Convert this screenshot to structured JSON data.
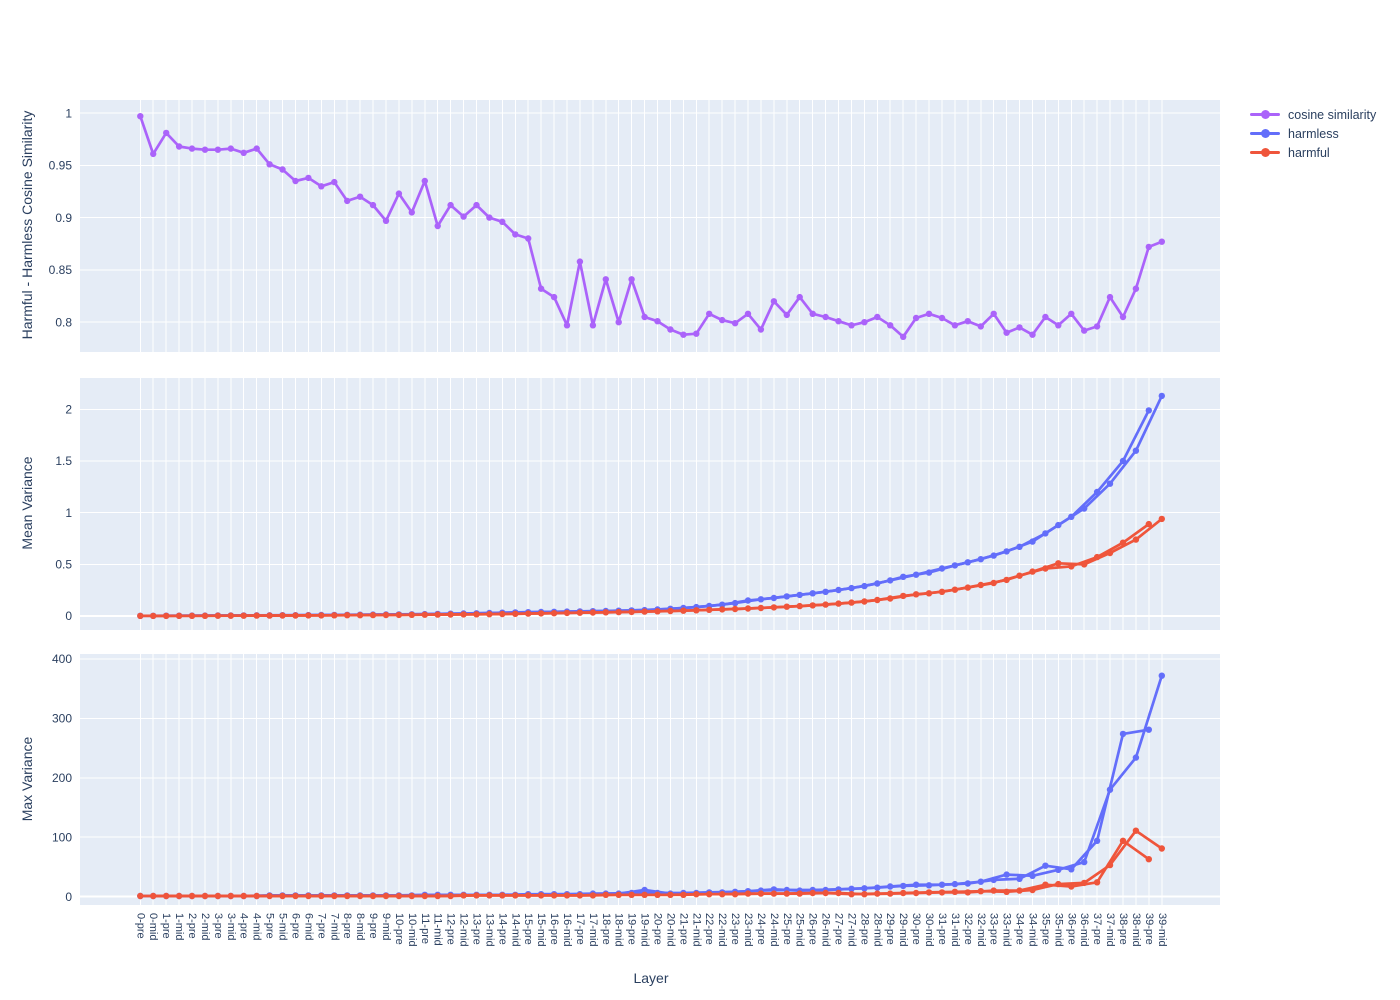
{
  "figure": {
    "background": "#ffffff",
    "plot_background": "#e5ecf6",
    "grid_color": "#ffffff",
    "text_color": "#2a3f5f"
  },
  "chart_data": {
    "type": "line",
    "xlabel": "Layer",
    "legend_position": "top-right",
    "grid": true,
    "categories": [
      "0-pre",
      "0-mid",
      "1-pre",
      "1-mid",
      "2-pre",
      "2-mid",
      "3-pre",
      "3-mid",
      "4-pre",
      "4-mid",
      "5-pre",
      "5-mid",
      "6-pre",
      "6-mid",
      "7-pre",
      "7-mid",
      "8-pre",
      "8-mid",
      "9-pre",
      "9-mid",
      "10-pre",
      "10-mid",
      "11-pre",
      "11-mid",
      "12-pre",
      "12-mid",
      "13-pre",
      "13-mid",
      "14-pre",
      "14-mid",
      "15-pre",
      "15-mid",
      "16-pre",
      "16-mid",
      "17-pre",
      "17-mid",
      "18-pre",
      "18-mid",
      "19-pre",
      "19-mid",
      "20-pre",
      "20-mid",
      "21-pre",
      "21-mid",
      "22-pre",
      "22-mid",
      "23-pre",
      "23-mid",
      "24-pre",
      "24-mid",
      "25-pre",
      "25-mid",
      "26-pre",
      "26-mid",
      "27-pre",
      "27-mid",
      "28-pre",
      "28-mid",
      "29-pre",
      "29-mid",
      "30-pre",
      "30-mid",
      "31-pre",
      "31-mid",
      "32-pre",
      "32-mid",
      "33-pre",
      "33-mid",
      "34-pre",
      "34-mid",
      "35-pre",
      "35-mid",
      "36-pre",
      "36-mid",
      "37-pre",
      "37-mid",
      "38-pre",
      "38-mid",
      "39-pre",
      "39-mid"
    ],
    "legend": [
      {
        "label": "cosine similarity",
        "color": "#ab63fa"
      },
      {
        "label": "harmless",
        "color": "#636efa"
      },
      {
        "label": "harmful",
        "color": "#ef553b"
      }
    ],
    "panels": [
      {
        "ylabel": "Harmful - Harmless Cosine Similarity",
        "ylim": [
          0.7715,
          1.0125
        ],
        "yticks": [
          0.8,
          0.85,
          0.9,
          0.95,
          1
        ],
        "yticklabels": [
          "0.8",
          "0.85",
          "0.9",
          "0.95",
          "1"
        ],
        "series": [
          {
            "name": "cosine similarity",
            "color": "#ab63fa",
            "braid": false,
            "values": [
              0.997,
              0.961,
              0.981,
              0.968,
              0.966,
              0.965,
              0.965,
              0.966,
              0.962,
              0.966,
              0.951,
              0.946,
              0.935,
              0.938,
              0.93,
              0.934,
              0.916,
              0.92,
              0.912,
              0.897,
              0.923,
              0.905,
              0.935,
              0.892,
              0.912,
              0.901,
              0.912,
              0.9,
              0.896,
              0.884,
              0.88,
              0.832,
              0.824,
              0.797,
              0.858,
              0.797,
              0.841,
              0.8,
              0.841,
              0.805,
              0.801,
              0.793,
              0.788,
              0.789,
              0.808,
              0.802,
              0.799,
              0.808,
              0.793,
              0.82,
              0.807,
              0.824,
              0.808,
              0.805,
              0.801,
              0.797,
              0.8,
              0.805,
              0.797,
              0.786,
              0.804,
              0.808,
              0.804,
              0.797,
              0.801,
              0.796,
              0.808,
              0.79,
              0.795,
              0.788,
              0.805,
              0.797,
              0.808,
              0.792,
              0.796,
              0.824,
              0.805,
              0.832,
              0.872,
              0.877
            ]
          }
        ]
      },
      {
        "ylabel": "Mean Variance",
        "ylim": [
          -0.135,
          2.303
        ],
        "yticks": [
          0,
          0.5,
          1,
          1.5,
          2
        ],
        "yticklabels": [
          "0",
          "0.5",
          "1",
          "1.5",
          "2"
        ],
        "series": [
          {
            "name": "harmless",
            "color": "#636efa",
            "braid": true,
            "values": [
              0.002,
              0.002,
              0.003,
              0.003,
              0.004,
              0.004,
              0.005,
              0.005,
              0.006,
              0.007,
              0.007,
              0.008,
              0.008,
              0.009,
              0.01,
              0.011,
              0.012,
              0.013,
              0.014,
              0.015,
              0.016,
              0.017,
              0.019,
              0.021,
              0.023,
              0.025,
              0.027,
              0.029,
              0.032,
              0.035,
              0.037,
              0.039,
              0.041,
              0.043,
              0.045,
              0.047,
              0.049,
              0.052,
              0.055,
              0.058,
              0.063,
              0.07,
              0.078,
              0.087,
              0.097,
              0.11,
              0.125,
              0.15,
              0.162,
              0.175,
              0.19,
              0.205,
              0.22,
              0.235,
              0.252,
              0.27,
              0.29,
              0.315,
              0.345,
              0.38,
              0.4,
              0.42,
              0.46,
              0.49,
              0.52,
              0.55,
              0.585,
              0.625,
              0.67,
              0.72,
              0.8,
              0.88,
              0.96,
              1.04,
              1.2,
              1.28,
              1.5,
              1.6,
              1.99,
              2.13
            ]
          },
          {
            "name": "harmful",
            "color": "#ef553b",
            "braid": true,
            "values": [
              0.001,
              0.001,
              0.001,
              0.002,
              0.002,
              0.002,
              0.003,
              0.003,
              0.003,
              0.004,
              0.004,
              0.005,
              0.005,
              0.006,
              0.006,
              0.007,
              0.008,
              0.008,
              0.009,
              0.01,
              0.011,
              0.012,
              0.013,
              0.014,
              0.015,
              0.016,
              0.017,
              0.018,
              0.02,
              0.022,
              0.024,
              0.026,
              0.028,
              0.03,
              0.032,
              0.034,
              0.036,
              0.038,
              0.04,
              0.043,
              0.046,
              0.049,
              0.052,
              0.056,
              0.06,
              0.064,
              0.068,
              0.073,
              0.078,
              0.084,
              0.09,
              0.096,
              0.103,
              0.111,
              0.12,
              0.13,
              0.141,
              0.155,
              0.17,
              0.195,
              0.21,
              0.22,
              0.235,
              0.255,
              0.275,
              0.3,
              0.32,
              0.35,
              0.39,
              0.43,
              0.46,
              0.51,
              0.48,
              0.5,
              0.57,
              0.61,
              0.71,
              0.74,
              0.89,
              0.94
            ]
          }
        ]
      },
      {
        "ylabel": "Max Variance",
        "ylim": [
          -14.2,
          408.5
        ],
        "yticks": [
          0,
          100,
          200,
          300,
          400
        ],
        "yticklabels": [
          "0",
          "100",
          "200",
          "300",
          "400"
        ],
        "series": [
          {
            "name": "harmless",
            "color": "#636efa",
            "braid": true,
            "values": [
              1,
              1,
              1,
              1,
              1,
              1,
              1,
              1,
              1,
              1,
              2,
              2,
              2,
              2,
              2,
              2,
              2,
              2,
              2,
              2,
              2,
              2,
              3,
              3,
              3,
              3,
              3,
              3,
              3,
              3,
              4,
              4,
              4,
              4,
              4,
              5,
              5,
              5,
              6,
              11,
              6,
              5,
              6,
              6,
              7,
              7,
              8,
              9,
              10,
              12,
              11,
              10,
              11,
              11,
              12,
              13,
              14,
              15,
              17,
              18,
              20,
              19,
              20,
              21,
              22,
              25,
              28,
              37,
              30,
              35,
              52,
              45,
              46,
              58,
              94,
              180,
              274,
              234,
              281,
              372
            ]
          },
          {
            "name": "harmful",
            "color": "#ef553b",
            "braid": true,
            "values": [
              1,
              1,
              1,
              1,
              1,
              1,
              1,
              1,
              1,
              1,
              1,
              1,
              1,
              1,
              1,
              1,
              1,
              1,
              1,
              1,
              1,
              1,
              1,
              1,
              1,
              2,
              2,
              2,
              2,
              2,
              2,
              2,
              2,
              2,
              2,
              2,
              3,
              3,
              3,
              3,
              3,
              3,
              3,
              4,
              4,
              4,
              4,
              5,
              5,
              5,
              5,
              5,
              6,
              6,
              6,
              4,
              4,
              5,
              5,
              6,
              6,
              7,
              7,
              8,
              7,
              9,
              10,
              8,
              10,
              11,
              20,
              21,
              17,
              23,
              24,
              53,
              94,
              111,
              63,
              81
            ]
          }
        ]
      }
    ]
  }
}
